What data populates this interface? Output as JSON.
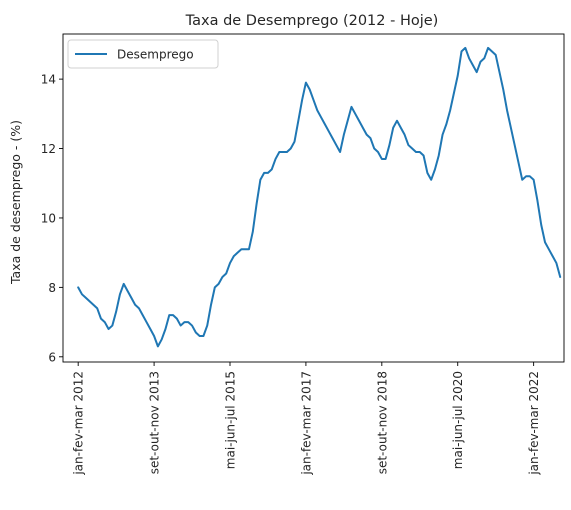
{
  "chart_data": {
    "type": "line",
    "title": "Taxa de Desemprego (2012 - Hoje)",
    "xlabel": "",
    "ylabel": "Taxa de desemprego - (%)",
    "ylim": [
      5.85,
      15.3
    ],
    "yticks": [
      6,
      8,
      10,
      12,
      14
    ],
    "xlim": [
      -4,
      128
    ],
    "xticks": [
      {
        "index": 0,
        "label": "jan-fev-mar 2012"
      },
      {
        "index": 20,
        "label": "set-out-nov 2013"
      },
      {
        "index": 40,
        "label": "mai-jun-jul 2015"
      },
      {
        "index": 60,
        "label": "jan-fev-mar 2017"
      },
      {
        "index": 80,
        "label": "set-out-nov 2018"
      },
      {
        "index": 100,
        "label": "mai-jun-jul 2020"
      },
      {
        "index": 120,
        "label": "jan-fev-mar 2022"
      }
    ],
    "grid": false,
    "legend_position": "upper-left",
    "series": [
      {
        "name": "Desemprego",
        "color": "#1f77b4",
        "x": [
          0,
          1,
          2,
          3,
          4,
          5,
          6,
          7,
          8,
          9,
          10,
          11,
          12,
          13,
          14,
          15,
          16,
          17,
          18,
          19,
          20,
          21,
          22,
          23,
          24,
          25,
          26,
          27,
          28,
          29,
          30,
          31,
          32,
          33,
          34,
          35,
          36,
          37,
          38,
          39,
          40,
          41,
          42,
          43,
          44,
          45,
          46,
          47,
          48,
          49,
          50,
          51,
          52,
          53,
          54,
          55,
          56,
          57,
          58,
          59,
          60,
          61,
          62,
          63,
          64,
          65,
          66,
          67,
          68,
          69,
          70,
          71,
          72,
          73,
          74,
          75,
          76,
          77,
          78,
          79,
          80,
          81,
          82,
          83,
          84,
          85,
          86,
          87,
          88,
          89,
          90,
          91,
          92,
          93,
          94,
          95,
          96,
          97,
          98,
          99,
          100,
          101,
          102,
          103,
          104,
          105,
          106,
          107,
          108,
          109,
          110,
          111,
          112,
          113,
          114,
          115,
          116,
          117,
          118,
          119,
          120,
          121,
          122,
          123,
          124,
          125,
          126,
          127
        ],
        "y": [
          8.0,
          7.8,
          7.7,
          7.6,
          7.5,
          7.4,
          7.1,
          7.0,
          6.8,
          6.9,
          7.3,
          7.8,
          8.1,
          7.9,
          7.7,
          7.5,
          7.4,
          7.2,
          7.0,
          6.8,
          6.6,
          6.3,
          6.5,
          6.8,
          7.2,
          7.2,
          7.1,
          6.9,
          7.0,
          7.0,
          6.9,
          6.7,
          6.6,
          6.6,
          6.9,
          7.5,
          8.0,
          8.1,
          8.3,
          8.4,
          8.7,
          8.9,
          9.0,
          9.1,
          9.1,
          9.1,
          9.6,
          10.4,
          11.1,
          11.3,
          11.3,
          11.4,
          11.7,
          11.9,
          11.9,
          11.9,
          12.0,
          12.2,
          12.8,
          13.4,
          13.9,
          13.7,
          13.4,
          13.1,
          12.9,
          12.7,
          12.5,
          12.3,
          12.1,
          11.9,
          12.4,
          12.8,
          13.2,
          13.0,
          12.8,
          12.6,
          12.4,
          12.3,
          12.0,
          11.9,
          11.7,
          11.7,
          12.1,
          12.6,
          12.8,
          12.6,
          12.4,
          12.1,
          12.0,
          11.9,
          11.9,
          11.8,
          11.3,
          11.1,
          11.4,
          11.8,
          12.4,
          12.7,
          13.1,
          13.6,
          14.1,
          14.8,
          14.9,
          14.6,
          14.4,
          14.2,
          14.5,
          14.6,
          14.9,
          14.8,
          14.7,
          14.2,
          13.7,
          13.1,
          12.6,
          12.1,
          11.6,
          11.1,
          11.2,
          11.2,
          11.1,
          10.5,
          9.8,
          9.3,
          9.1,
          8.9,
          8.7,
          8.3
        ]
      }
    ]
  }
}
